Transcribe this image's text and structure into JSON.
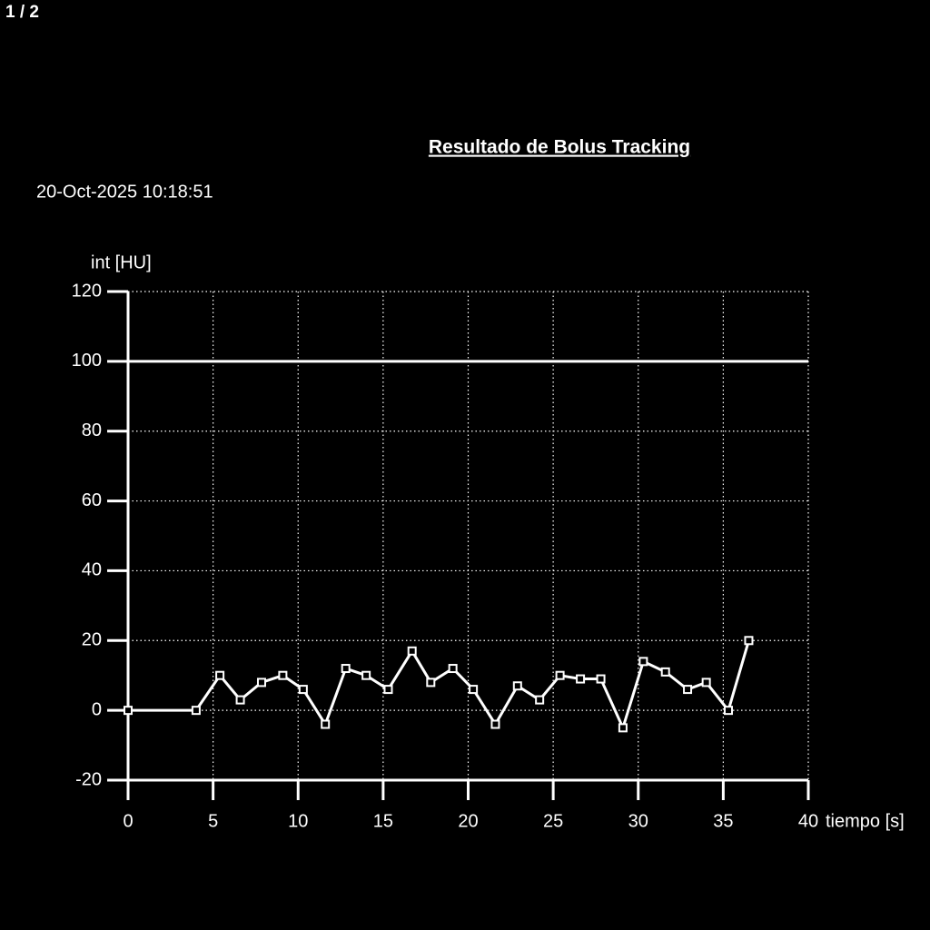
{
  "page_indicator": "1 / 2",
  "chart_data": {
    "type": "line",
    "title": "Resultado de Bolus Tracking",
    "timestamp": "20-Oct-2025 10:18:51",
    "y_label": "int [HU]",
    "x_label": "tiempo [s]",
    "x": [
      0,
      4.0,
      5.4,
      6.6,
      7.85,
      9.1,
      10.3,
      11.6,
      12.8,
      14.0,
      15.3,
      16.7,
      17.8,
      19.1,
      20.3,
      21.6,
      22.9,
      24.2,
      25.4,
      26.6,
      27.8,
      29.1,
      30.3,
      31.6,
      32.9,
      34.0,
      35.3,
      36.5
    ],
    "values": [
      0,
      0,
      10,
      3,
      8,
      10,
      6,
      -4,
      12,
      10,
      6,
      17,
      8,
      12,
      6,
      -4,
      7,
      3,
      10,
      9,
      9,
      -5,
      14,
      11,
      6,
      8,
      0,
      20
    ],
    "color": "#ffffff",
    "threshold": 100,
    "xlim": [
      0,
      40
    ],
    "xticks": [
      0,
      5,
      10,
      15,
      20,
      25,
      30,
      35,
      40
    ],
    "ylim": [
      -20,
      120
    ],
    "yticks": [
      -20,
      0,
      20,
      40,
      60,
      80,
      100,
      120
    ],
    "grid": true
  }
}
